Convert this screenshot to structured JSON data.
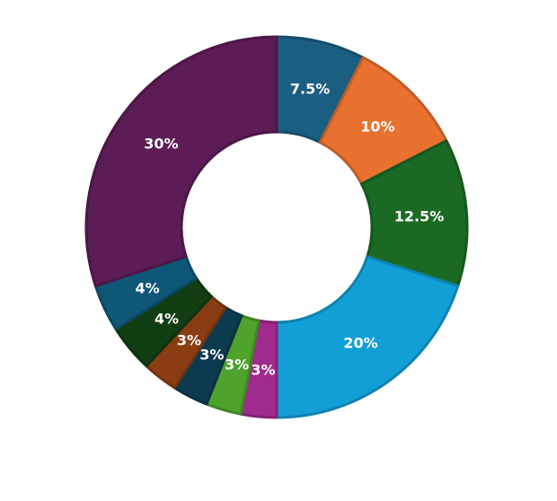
{
  "chart_data": {
    "type": "pie",
    "subtype": "donut",
    "start": "top",
    "direction": "clockwise",
    "slices": [
      {
        "value": 7.5,
        "label": "7.5%",
        "color": "#1a5e82"
      },
      {
        "value": 10,
        "label": "10%",
        "color": "#e87130"
      },
      {
        "value": 12.5,
        "label": "12.5%",
        "color": "#1b6a24"
      },
      {
        "value": 20,
        "label": "20%",
        "color": "#129fd6"
      },
      {
        "value": 3,
        "label": "3%",
        "color": "#a02a8e"
      },
      {
        "value": 3,
        "label": "3%",
        "color": "#4ea32c"
      },
      {
        "value": 3,
        "label": "3%",
        "color": "#0c3a4f"
      },
      {
        "value": 3,
        "label": "3%",
        "color": "#8a3d13"
      },
      {
        "value": 4,
        "label": "4%",
        "color": "#113d12"
      },
      {
        "value": 4,
        "label": "4%",
        "color": "#0e5777"
      },
      {
        "value": 30,
        "label": "30%",
        "color": "#5c1c55"
      }
    ]
  }
}
